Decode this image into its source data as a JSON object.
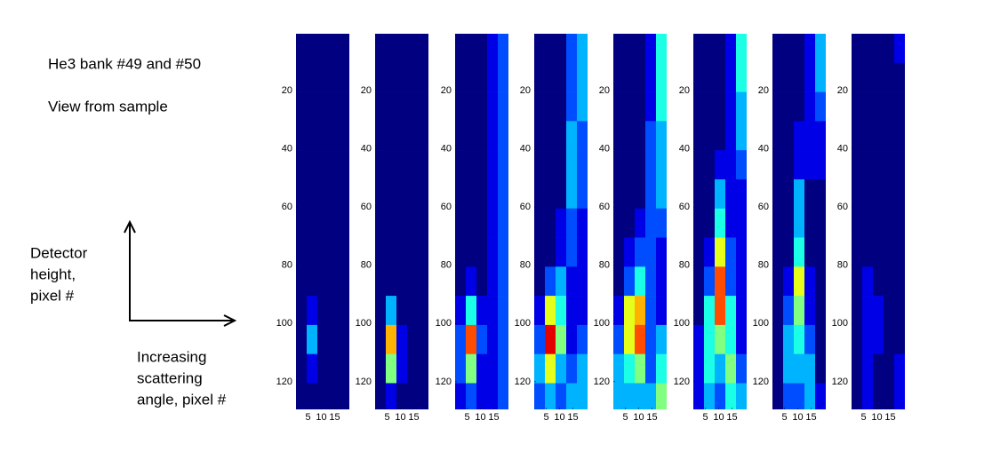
{
  "chart_data": {
    "type": "heatmap",
    "colormap": "jet",
    "clim": [
      0,
      10
    ],
    "annotations": {
      "title_lines": [
        "He3 bank #49 and #50",
        "View from sample"
      ],
      "y_label_lines": [
        "Detector",
        "height,",
        "pixel #"
      ],
      "x_label_lines": [
        "Increasing",
        "scattering",
        "angle, pixel #"
      ]
    },
    "xlim": [
      0.5,
      20.5
    ],
    "ylim": [
      0.5,
      129.5
    ],
    "y_inverted": true,
    "xticks": [
      5,
      10,
      15
    ],
    "yticks": [
      20,
      40,
      60,
      80,
      100,
      120
    ],
    "x_edges": [
      0.5,
      4.5,
      8.5,
      12.5,
      16.5,
      20.5
    ],
    "y_edges": [
      0.5,
      10.5,
      20.5,
      30.5,
      40.5,
      50.5,
      60.5,
      70.5,
      80.5,
      90.5,
      100.5,
      110.5,
      120.5,
      129.5
    ],
    "panels": [
      {
        "values": [
          [
            0,
            0,
            0,
            0,
            0
          ],
          [
            0,
            0,
            0,
            0,
            0
          ],
          [
            0,
            0,
            0,
            0,
            0
          ],
          [
            0,
            0,
            0,
            0,
            0
          ],
          [
            0,
            0,
            0,
            0,
            0
          ],
          [
            0,
            0,
            0,
            0,
            0
          ],
          [
            0,
            0,
            0,
            0,
            0
          ],
          [
            0,
            0,
            0,
            0,
            0
          ],
          [
            0,
            0,
            0,
            0,
            0
          ],
          [
            0,
            1,
            0,
            0,
            0
          ],
          [
            0,
            3,
            0,
            0,
            0
          ],
          [
            0,
            1,
            0,
            0,
            0
          ],
          [
            0,
            0,
            0,
            0,
            0
          ]
        ]
      },
      {
        "values": [
          [
            0,
            0,
            0,
            0,
            0
          ],
          [
            0,
            0,
            0,
            0,
            0
          ],
          [
            0,
            0,
            0,
            0,
            0
          ],
          [
            0,
            0,
            0,
            0,
            0
          ],
          [
            0,
            0,
            0,
            0,
            0
          ],
          [
            0,
            0,
            0,
            0,
            0
          ],
          [
            0,
            0,
            0,
            0,
            0
          ],
          [
            0,
            0,
            0,
            0,
            0
          ],
          [
            0,
            0,
            0,
            0,
            0
          ],
          [
            0,
            3,
            0,
            0,
            0
          ],
          [
            0,
            7,
            1,
            0,
            0
          ],
          [
            0,
            5,
            1,
            0,
            0
          ],
          [
            0,
            1,
            0,
            0,
            0
          ]
        ]
      },
      {
        "values": [
          [
            0,
            0,
            0,
            1,
            2
          ],
          [
            0,
            0,
            0,
            1,
            2
          ],
          [
            0,
            0,
            0,
            1,
            2
          ],
          [
            0,
            0,
            0,
            1,
            2
          ],
          [
            0,
            0,
            0,
            1,
            2
          ],
          [
            0,
            0,
            0,
            1,
            2
          ],
          [
            0,
            0,
            0,
            1,
            2
          ],
          [
            0,
            0,
            0,
            1,
            2
          ],
          [
            0,
            1,
            0,
            1,
            2
          ],
          [
            1,
            4,
            1,
            1,
            2
          ],
          [
            2,
            8,
            2,
            1,
            2
          ],
          [
            2,
            5,
            1,
            1,
            2
          ],
          [
            1,
            2,
            1,
            1,
            2
          ]
        ]
      },
      {
        "values": [
          [
            0,
            0,
            0,
            2,
            3
          ],
          [
            0,
            0,
            0,
            2,
            3
          ],
          [
            0,
            0,
            0,
            2,
            3
          ],
          [
            0,
            0,
            0,
            3,
            2
          ],
          [
            0,
            0,
            0,
            3,
            2
          ],
          [
            0,
            0,
            0,
            3,
            2
          ],
          [
            0,
            0,
            1,
            2,
            1
          ],
          [
            0,
            0,
            1,
            2,
            1
          ],
          [
            0,
            2,
            3,
            1,
            1
          ],
          [
            1,
            6,
            4,
            1,
            1
          ],
          [
            2,
            9,
            5,
            1,
            2
          ],
          [
            3,
            6,
            3,
            2,
            3
          ],
          [
            2,
            3,
            2,
            3,
            3
          ]
        ]
      },
      {
        "values": [
          [
            0,
            0,
            0,
            1,
            4
          ],
          [
            0,
            0,
            0,
            1,
            4
          ],
          [
            0,
            0,
            0,
            1,
            4
          ],
          [
            0,
            0,
            0,
            2,
            3
          ],
          [
            0,
            0,
            0,
            2,
            3
          ],
          [
            0,
            0,
            0,
            2,
            3
          ],
          [
            0,
            0,
            1,
            2,
            2
          ],
          [
            0,
            1,
            2,
            2,
            1
          ],
          [
            0,
            2,
            4,
            2,
            1
          ],
          [
            1,
            6,
            7,
            2,
            1
          ],
          [
            2,
            6,
            8,
            2,
            3
          ],
          [
            3,
            4,
            5,
            2,
            4
          ],
          [
            3,
            3,
            3,
            3,
            5
          ]
        ]
      },
      {
        "values": [
          [
            0,
            0,
            0,
            1,
            4
          ],
          [
            0,
            0,
            0,
            1,
            4
          ],
          [
            0,
            0,
            0,
            1,
            3
          ],
          [
            0,
            0,
            0,
            1,
            3
          ],
          [
            0,
            0,
            1,
            1,
            2
          ],
          [
            0,
            0,
            3,
            1,
            1
          ],
          [
            0,
            0,
            4,
            1,
            1
          ],
          [
            0,
            1,
            6,
            2,
            1
          ],
          [
            0,
            2,
            8,
            2,
            1
          ],
          [
            0,
            4,
            8,
            4,
            1
          ],
          [
            1,
            4,
            5,
            4,
            1
          ],
          [
            1,
            4,
            3,
            5,
            2
          ],
          [
            1,
            3,
            2,
            4,
            3
          ]
        ]
      },
      {
        "values": [
          [
            0,
            0,
            0,
            1,
            3
          ],
          [
            0,
            0,
            0,
            1,
            3
          ],
          [
            0,
            0,
            0,
            1,
            2
          ],
          [
            0,
            0,
            1,
            1,
            1
          ],
          [
            0,
            0,
            1,
            1,
            1
          ],
          [
            0,
            0,
            3,
            0,
            0
          ],
          [
            0,
            0,
            3,
            0,
            0
          ],
          [
            0,
            0,
            4,
            0,
            0
          ],
          [
            0,
            1,
            6,
            1,
            0
          ],
          [
            0,
            2,
            5,
            1,
            0
          ],
          [
            0,
            3,
            4,
            2,
            0
          ],
          [
            0,
            3,
            3,
            3,
            0
          ],
          [
            0,
            2,
            2,
            3,
            1
          ]
        ]
      },
      {
        "values": [
          [
            0,
            0,
            0,
            0,
            1
          ],
          [
            0,
            0,
            0,
            0,
            0
          ],
          [
            0,
            0,
            0,
            0,
            0
          ],
          [
            0,
            0,
            0,
            0,
            0
          ],
          [
            0,
            0,
            0,
            0,
            0
          ],
          [
            0,
            0,
            0,
            0,
            0
          ],
          [
            0,
            0,
            0,
            0,
            0
          ],
          [
            0,
            0,
            0,
            0,
            0
          ],
          [
            0,
            1,
            0,
            0,
            0
          ],
          [
            0,
            1,
            1,
            0,
            0
          ],
          [
            0,
            1,
            1,
            0,
            0
          ],
          [
            0,
            1,
            0,
            0,
            1
          ],
          [
            0,
            1,
            0,
            0,
            1
          ]
        ]
      }
    ]
  }
}
